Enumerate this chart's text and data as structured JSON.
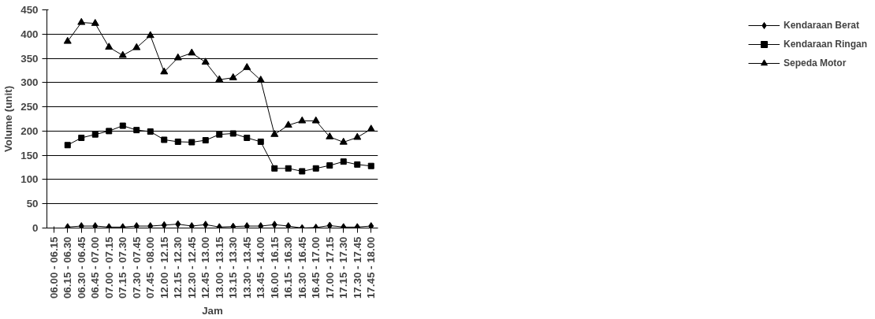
{
  "chart_data": {
    "type": "line",
    "xlabel": "Jam",
    "ylabel": "Volume (unit)",
    "categories": [
      "06.00 - 06.15",
      "06.15 - 06.30",
      "06.30 - 06.45",
      "06.45 - 07.00",
      "07.00 - 07.15",
      "07.15 - 07.30",
      "07.30 - 07.45",
      "07.45 - 08.00",
      "12.00 - 12.15",
      "12.15 - 12.30",
      "12.30 - 12.45",
      "12.45 - 13.00",
      "13.00 - 13.15",
      "13.15 - 13.30",
      "13.30 - 13.45",
      "13.45 - 14.00",
      "16.00 - 16.15",
      "16.15 - 16.30",
      "16.30 - 16.45",
      "16.45 - 17.00",
      "17.00 - 17.15",
      "17.15 - 17.30",
      "17.30 - 17.45",
      "17.45 - 18.00"
    ],
    "series": [
      {
        "name": "Kendaraan Berat",
        "color": "#000000",
        "marker": "diamond",
        "values": [
          null,
          2,
          4,
          4,
          2,
          2,
          4,
          4,
          6,
          8,
          4,
          7,
          2,
          3,
          4,
          4,
          7,
          4,
          0,
          1,
          5,
          2,
          2,
          4
        ]
      },
      {
        "name": "Kendaraan Ringan",
        "color": "#000000",
        "marker": "square",
        "values": [
          null,
          171,
          186,
          193,
          200,
          211,
          202,
          199,
          182,
          178,
          177,
          181,
          193,
          195,
          186,
          178,
          123,
          123,
          117,
          123,
          129,
          137,
          131,
          128
        ]
      },
      {
        "name": "Sepeda Motor",
        "color": "#000000",
        "marker": "triangle",
        "values": [
          null,
          385,
          424,
          422,
          373,
          356,
          372,
          397,
          322,
          351,
          361,
          342,
          306,
          310,
          331,
          305,
          193,
          212,
          221,
          221,
          188,
          177,
          187,
          204
        ]
      }
    ],
    "ylim": [
      0,
      450
    ],
    "yticks": [
      0,
      50,
      100,
      150,
      200,
      250,
      300,
      350,
      400,
      450
    ],
    "grid": "y",
    "legend": "right",
    "line_style": "solid"
  }
}
